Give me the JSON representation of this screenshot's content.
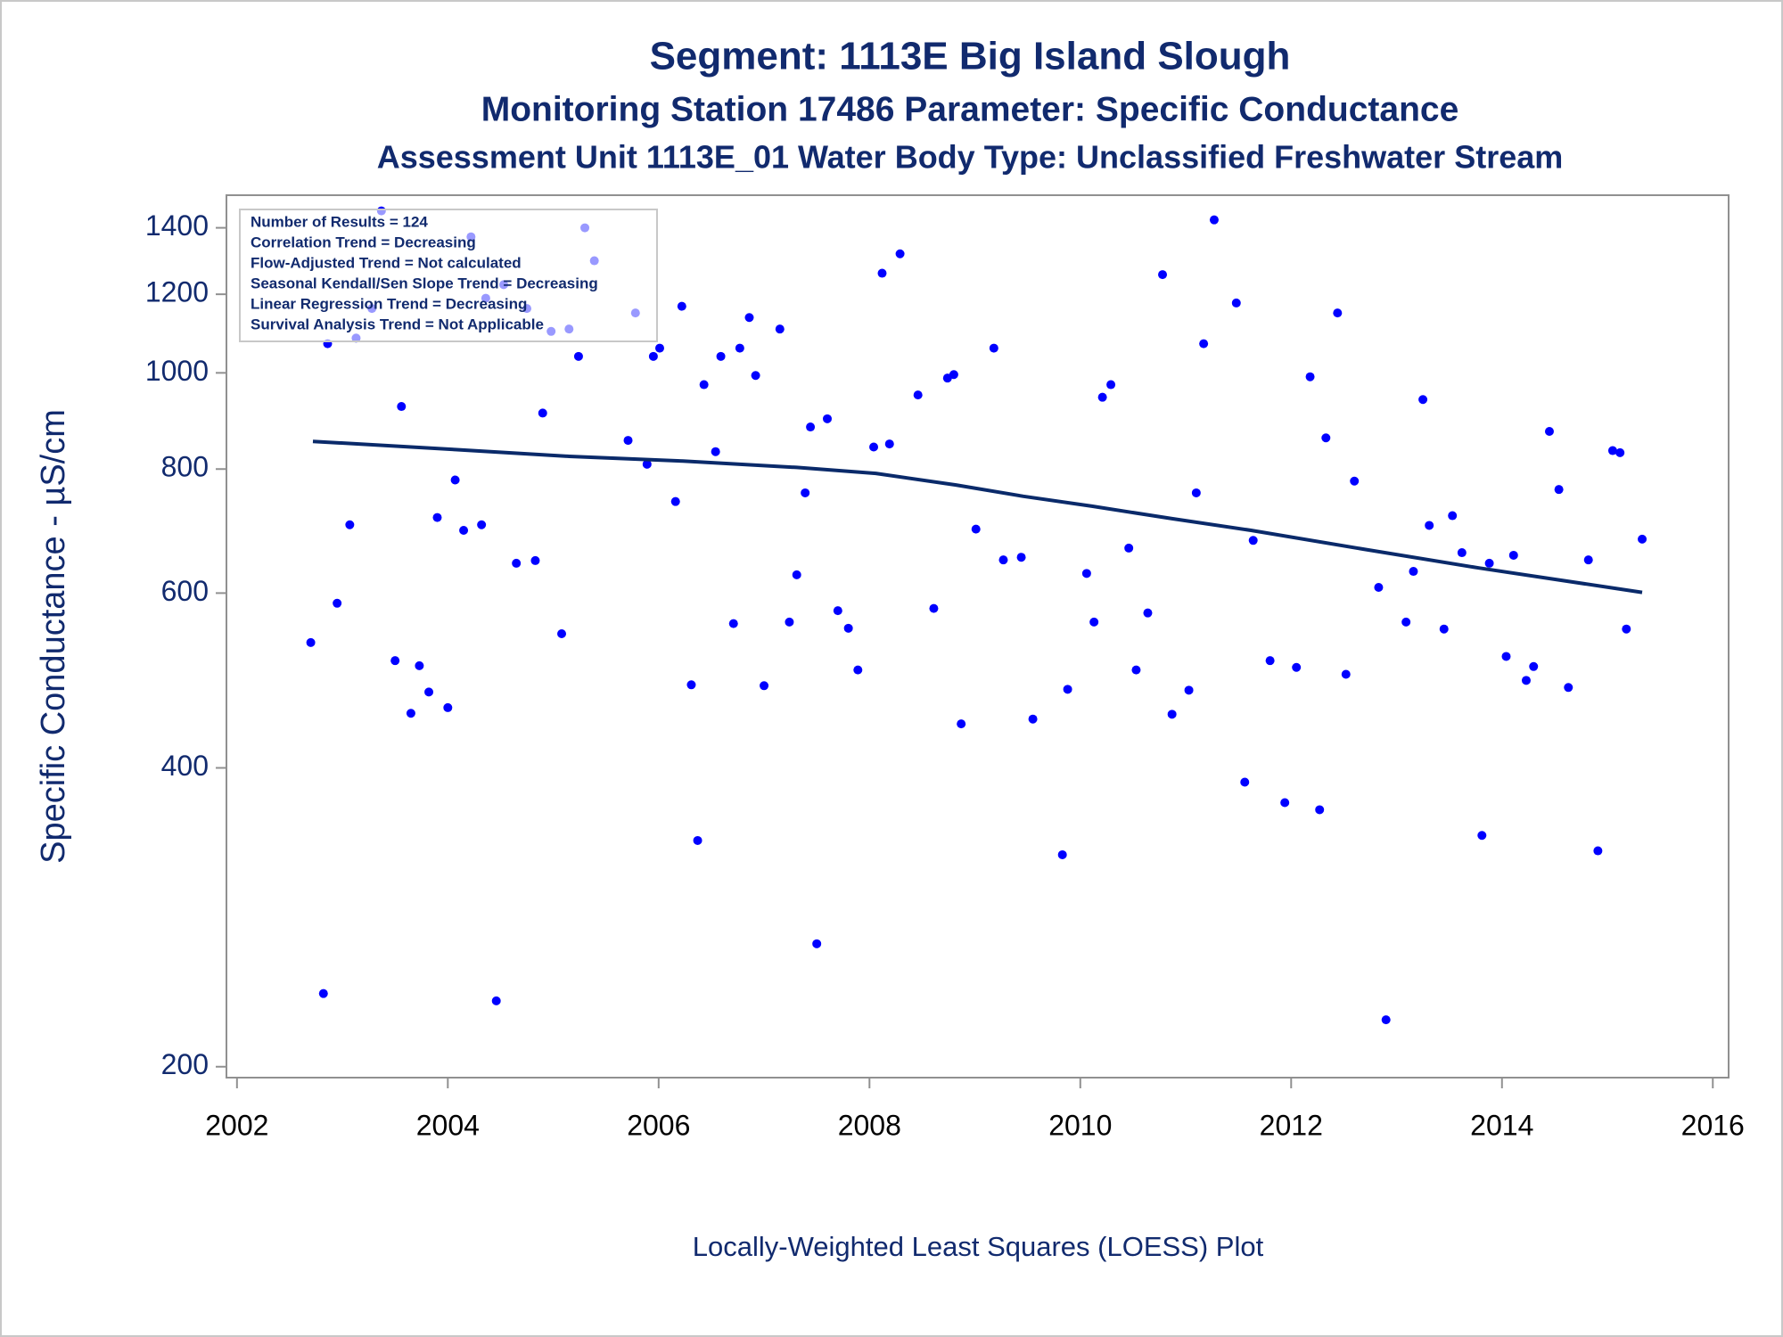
{
  "chart_data": {
    "type": "scatter",
    "title": "Segment: 1113E  Big Island Slough",
    "subtitle": "Monitoring Station 17486 Parameter: Specific Conductance",
    "subtitle2": "Assessment Unit 1113E_01   Water Body Type: Unclassified Freshwater Stream",
    "y_label": "Specific Conductance -  µS/cm",
    "footnote": "Locally-Weighted Least Squares (LOESS) Plot",
    "annotations": [
      "Number of Results = 124",
      "Correlation Trend = Decreasing",
      "Flow-Adjusted Trend = Not calculated",
      "Seasonal Kendall/Sen Slope Trend = Decreasing",
      "Linear Regression Trend = Decreasing",
      "Survival Analysis Trend = Not Applicable"
    ],
    "xlim": [
      2001.9,
      2016.15
    ],
    "xticks": [
      2002,
      2004,
      2006,
      2008,
      2010,
      2012,
      2014,
      2016
    ],
    "ylim": [
      195,
      1510
    ],
    "yticks": [
      200,
      400,
      600,
      800,
      1000,
      1200,
      1400
    ],
    "y_scale": "log",
    "grid": false,
    "series": [
      {
        "type": "scatter",
        "color": "#0000ff",
        "x": [
          2002.7,
          2002.82,
          2002.86,
          2002.95,
          2003.07,
          2003.13,
          2003.28,
          2003.37,
          2003.5,
          2003.56,
          2003.65,
          2003.73,
          2003.82,
          2003.9,
          2004.0,
          2004.07,
          2004.15,
          2004.22,
          2004.32,
          2004.36,
          2004.46,
          2004.53,
          2004.65,
          2004.75,
          2004.83,
          2004.9,
          2004.98,
          2005.08,
          2005.15,
          2005.24,
          2005.3,
          2005.39,
          2005.71,
          2005.78,
          2005.89,
          2005.95,
          2006.01,
          2006.16,
          2006.22,
          2006.31,
          2006.37,
          2006.43,
          2006.54,
          2006.59,
          2006.71,
          2006.77,
          2006.86,
          2006.92,
          2007.0,
          2007.15,
          2007.24,
          2007.31,
          2007.39,
          2007.44,
          2007.5,
          2007.6,
          2007.7,
          2007.8,
          2007.89,
          2008.04,
          2008.12,
          2008.19,
          2008.29,
          2008.46,
          2008.61,
          2008.74,
          2008.8,
          2008.87,
          2009.01,
          2009.18,
          2009.27,
          2009.44,
          2009.55,
          2009.83,
          2009.88,
          2010.06,
          2010.13,
          2010.21,
          2010.29,
          2010.46,
          2010.53,
          2010.64,
          2010.78,
          2010.87,
          2011.03,
          2011.1,
          2011.17,
          2011.27,
          2011.48,
          2011.56,
          2011.64,
          2011.8,
          2011.94,
          2012.05,
          2012.18,
          2012.27,
          2012.33,
          2012.44,
          2012.52,
          2012.6,
          2012.83,
          2012.9,
          2013.09,
          2013.16,
          2013.25,
          2013.31,
          2013.45,
          2013.53,
          2013.62,
          2013.81,
          2013.88,
          2014.04,
          2014.11,
          2014.23,
          2014.3,
          2014.45,
          2014.54,
          2014.63,
          2014.82,
          2014.91,
          2015.05,
          2015.12,
          2015.18,
          2015.33
        ],
        "values": [
          535,
          237,
          1070,
          586,
          703,
          1084,
          1161,
          1456,
          513,
          925,
          454,
          507,
          477,
          715,
          460,
          780,
          694,
          1371,
          703,
          1189,
          233,
          1227,
          643,
          1161,
          647,
          911,
          1101,
          546,
          1107,
          1039,
          1400,
          1297,
          855,
          1149,
          809,
          1039,
          1059,
          742,
          1167,
          485,
          338,
          973,
          833,
          1039,
          559,
          1059,
          1137,
          994,
          484,
          1107,
          561,
          626,
          757,
          882,
          266,
          899,
          576,
          553,
          502,
          842,
          1260,
          848,
          1318,
          950,
          579,
          988,
          996,
          443,
          696,
          1059,
          648,
          652,
          448,
          327,
          480,
          628,
          561,
          945,
          973,
          666,
          502,
          573,
          1256,
          453,
          479,
          757,
          1070,
          1426,
          1176,
          387,
          678,
          513,
          369,
          505,
          991,
          363,
          860,
          1149,
          497,
          778,
          608,
          223,
          561,
          631,
          940,
          702,
          552,
          718,
          659,
          342,
          643,
          518,
          655,
          490,
          506,
          873,
          763,
          482,
          648,
          330,
          835,
          831,
          552,
          680
        ]
      },
      {
        "type": "line",
        "color": "#0a2a6a",
        "x": [
          2002.72,
          2004.07,
          2005.15,
          2006.23,
          2007.31,
          2008.06,
          2008.82,
          2009.46,
          2010.11,
          2010.87,
          2011.62,
          2012.7,
          2013.78,
          2015.33
        ],
        "values": [
          853,
          837,
          824,
          815,
          803,
          792,
          771,
          751,
          734,
          713,
          694,
          664,
          636,
          601
        ]
      }
    ]
  }
}
